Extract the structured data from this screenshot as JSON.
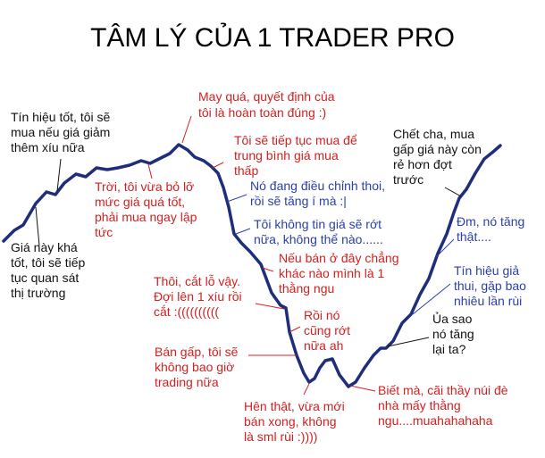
{
  "title": "TÂM LÝ CỦA 1 TRADER PRO",
  "colors": {
    "black": "#111111",
    "red": "#d42020",
    "blue": "#2b3fa8",
    "line": "#1e2e7a"
  },
  "annotations": [
    {
      "id": "a1",
      "color": "black",
      "lines": [
        "Giá này khá",
        "tốt, tôi sẽ tiếp",
        "tục quan sát",
        "thị trường"
      ]
    },
    {
      "id": "a2",
      "color": "black",
      "lines": [
        "Tín hiệu tốt, tôi sẽ",
        "mua nếu giá giảm",
        "thêm xíu nữa"
      ]
    },
    {
      "id": "a3",
      "color": "red",
      "lines": [
        "Trời, tôi vừa bỏ lỡ",
        "mức giá quá tốt,",
        "phải mua ngay lập",
        "tức"
      ]
    },
    {
      "id": "a4",
      "color": "red",
      "lines": [
        "May quá, quyết định của",
        "tôi là hoàn toàn đúng :)"
      ]
    },
    {
      "id": "a5",
      "color": "red",
      "lines": [
        "Tôi sẽ tiếp tục mua để",
        "trung bình giá mua",
        "thấp"
      ]
    },
    {
      "id": "a6",
      "color": "blue",
      "lines": [
        "Nó đang điều chỉnh thoi,",
        "rồi sẽ tăng í mà :|"
      ]
    },
    {
      "id": "a7",
      "color": "blue",
      "lines": [
        "Tôi không tin giá sẽ rớt",
        "nữa, không thể nào......"
      ]
    },
    {
      "id": "a8",
      "color": "red",
      "lines": [
        "Nếu bán ở đây chẳng",
        "khác nào mình là 1",
        "thằng ngu"
      ]
    },
    {
      "id": "a9",
      "color": "red",
      "lines": [
        "Thôi, cắt lỗ vậy.",
        "Đợi lên 1 xíu rồi",
        "cắt :(((((((((("
      ]
    },
    {
      "id": "a10",
      "color": "red",
      "lines": [
        "Rồi nó",
        "cũng rớt",
        "nữa ah"
      ]
    },
    {
      "id": "a11",
      "color": "red",
      "lines": [
        "Bán gấp, tôi sẽ",
        "không bao giờ",
        "trading nữa"
      ]
    },
    {
      "id": "a12",
      "color": "red",
      "lines": [
        "Hên thật, vừa mới",
        "bán xong, không",
        "là sml rùi :))))"
      ]
    },
    {
      "id": "a13",
      "color": "red",
      "lines": [
        "Biết mà, cãi thầy núi đè",
        "nhà mấy thằng",
        "ngu....muahahahaha"
      ]
    },
    {
      "id": "a14",
      "color": "black",
      "lines": [
        "Ủa sao",
        "nó tăng",
        "lại ta?"
      ]
    },
    {
      "id": "a15",
      "color": "blue",
      "lines": [
        "Tín hiệu giả",
        "thui, gặp bao",
        "nhiêu lần rùi"
      ]
    },
    {
      "id": "a16",
      "color": "blue",
      "lines": [
        "Đm, nó tăng",
        "thật...."
      ]
    },
    {
      "id": "a17",
      "color": "black",
      "lines": [
        "Chết cha, mua",
        "gấp giá này còn",
        "rẻ hơn đợt",
        "trước"
      ]
    }
  ]
}
